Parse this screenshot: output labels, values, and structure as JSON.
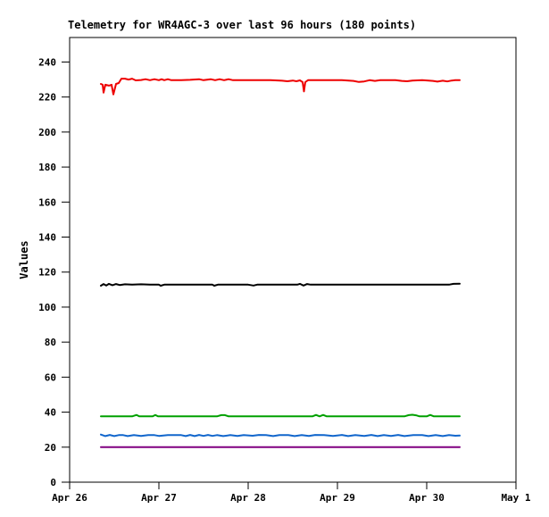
{
  "window": {
    "background": "#ffffff"
  },
  "chart_data": {
    "type": "line",
    "title": "Telemetry for WR4AGC-3 over last 96 hours (180 points)",
    "xlabel": "",
    "ylabel": "Values",
    "grid": false,
    "legend": "none",
    "points_per_series": 180,
    "x_axis": {
      "tick_labels": [
        "Apr 26",
        "Apr 27",
        "Apr 28",
        "Apr 29",
        "Apr 30",
        "May 1"
      ],
      "tick_positions_days": [
        0,
        1,
        2,
        3,
        4,
        5
      ],
      "xlim_days": [
        0,
        5
      ]
    },
    "y_axis": {
      "ticks": [
        0,
        20,
        40,
        60,
        80,
        100,
        120,
        140,
        160,
        180,
        200,
        220,
        240
      ],
      "ylim": [
        0,
        254
      ]
    },
    "colors": {
      "axis": "#000000",
      "text": "#000000",
      "plot_background": "#ffffff"
    },
    "series": [
      {
        "name": "series-red",
        "color": "#ee0000",
        "approx_level": 229.5,
        "points": [
          [
            0.35,
            227.5
          ],
          [
            0.37,
            227.0
          ],
          [
            0.38,
            222.5
          ],
          [
            0.4,
            227.0
          ],
          [
            0.44,
            226.5
          ],
          [
            0.47,
            227.0
          ],
          [
            0.49,
            221.5
          ],
          [
            0.52,
            227.5
          ],
          [
            0.55,
            228.0
          ],
          [
            0.58,
            230.5
          ],
          [
            0.62,
            230.5
          ],
          [
            0.66,
            230.0
          ],
          [
            0.7,
            230.5
          ],
          [
            0.74,
            229.5
          ],
          [
            0.8,
            229.7
          ],
          [
            0.85,
            230.2
          ],
          [
            0.9,
            229.6
          ],
          [
            0.95,
            230.2
          ],
          [
            1.0,
            229.6
          ],
          [
            1.03,
            230.2
          ],
          [
            1.06,
            229.6
          ],
          [
            1.1,
            230.2
          ],
          [
            1.14,
            229.6
          ],
          [
            1.25,
            229.6
          ],
          [
            1.35,
            229.8
          ],
          [
            1.45,
            230.2
          ],
          [
            1.5,
            229.6
          ],
          [
            1.58,
            230.2
          ],
          [
            1.63,
            229.6
          ],
          [
            1.68,
            230.2
          ],
          [
            1.73,
            229.6
          ],
          [
            1.78,
            230.2
          ],
          [
            1.83,
            229.6
          ],
          [
            1.95,
            229.6
          ],
          [
            2.1,
            229.6
          ],
          [
            2.25,
            229.6
          ],
          [
            2.38,
            229.3
          ],
          [
            2.44,
            229.0
          ],
          [
            2.5,
            229.4
          ],
          [
            2.54,
            229.0
          ],
          [
            2.58,
            229.5
          ],
          [
            2.61,
            228.5
          ],
          [
            2.625,
            223.2
          ],
          [
            2.64,
            228.5
          ],
          [
            2.67,
            229.6
          ],
          [
            2.85,
            229.6
          ],
          [
            3.05,
            229.6
          ],
          [
            3.18,
            229.2
          ],
          [
            3.24,
            228.6
          ],
          [
            3.3,
            228.9
          ],
          [
            3.36,
            229.6
          ],
          [
            3.42,
            229.2
          ],
          [
            3.48,
            229.6
          ],
          [
            3.65,
            229.6
          ],
          [
            3.72,
            229.2
          ],
          [
            3.78,
            229.0
          ],
          [
            3.84,
            229.4
          ],
          [
            3.95,
            229.6
          ],
          [
            4.07,
            229.2
          ],
          [
            4.12,
            228.8
          ],
          [
            4.18,
            229.3
          ],
          [
            4.23,
            228.9
          ],
          [
            4.28,
            229.4
          ],
          [
            4.32,
            229.6
          ],
          [
            4.37,
            229.6
          ]
        ]
      },
      {
        "name": "series-black",
        "color": "#000000",
        "approx_level": 112.8,
        "points": [
          [
            0.35,
            112.2
          ],
          [
            0.38,
            113.2
          ],
          [
            0.41,
            112.3
          ],
          [
            0.44,
            113.3
          ],
          [
            0.48,
            112.5
          ],
          [
            0.52,
            113.2
          ],
          [
            0.56,
            112.6
          ],
          [
            0.62,
            113.0
          ],
          [
            0.7,
            112.8
          ],
          [
            0.8,
            113.0
          ],
          [
            0.9,
            112.8
          ],
          [
            1.0,
            112.8
          ],
          [
            1.02,
            112.2
          ],
          [
            1.06,
            112.8
          ],
          [
            1.2,
            112.8
          ],
          [
            1.4,
            112.8
          ],
          [
            1.6,
            112.8
          ],
          [
            1.62,
            112.2
          ],
          [
            1.66,
            112.8
          ],
          [
            1.8,
            112.8
          ],
          [
            2.0,
            112.8
          ],
          [
            2.06,
            112.3
          ],
          [
            2.1,
            112.8
          ],
          [
            2.3,
            112.8
          ],
          [
            2.55,
            112.8
          ],
          [
            2.58,
            113.3
          ],
          [
            2.62,
            112.3
          ],
          [
            2.66,
            113.2
          ],
          [
            2.7,
            112.8
          ],
          [
            3.0,
            112.8
          ],
          [
            3.3,
            112.8
          ],
          [
            3.6,
            112.8
          ],
          [
            3.9,
            112.8
          ],
          [
            4.1,
            112.8
          ],
          [
            4.25,
            112.8
          ],
          [
            4.3,
            113.3
          ],
          [
            4.37,
            113.4
          ]
        ]
      },
      {
        "name": "series-green",
        "color": "#00a000",
        "approx_level": 37.6,
        "points": [
          [
            0.35,
            37.6
          ],
          [
            0.7,
            37.6
          ],
          [
            0.75,
            38.4
          ],
          [
            0.78,
            37.6
          ],
          [
            0.93,
            37.6
          ],
          [
            0.96,
            38.4
          ],
          [
            0.99,
            37.6
          ],
          [
            1.2,
            37.6
          ],
          [
            1.65,
            37.6
          ],
          [
            1.7,
            38.3
          ],
          [
            1.74,
            38.3
          ],
          [
            1.78,
            37.6
          ],
          [
            2.1,
            37.6
          ],
          [
            2.72,
            37.6
          ],
          [
            2.76,
            38.4
          ],
          [
            2.8,
            37.6
          ],
          [
            2.84,
            38.4
          ],
          [
            2.88,
            37.6
          ],
          [
            3.2,
            37.6
          ],
          [
            3.75,
            37.6
          ],
          [
            3.8,
            38.3
          ],
          [
            3.84,
            38.5
          ],
          [
            3.88,
            38.2
          ],
          [
            3.92,
            37.6
          ],
          [
            4.0,
            37.6
          ],
          [
            4.04,
            38.4
          ],
          [
            4.08,
            37.6
          ],
          [
            4.37,
            37.6
          ]
        ]
      },
      {
        "name": "series-blue",
        "color": "#1166cc",
        "approx_level": 26.6,
        "points": [
          [
            0.35,
            27.2
          ],
          [
            0.4,
            26.3
          ],
          [
            0.45,
            27.0
          ],
          [
            0.5,
            26.3
          ],
          [
            0.55,
            26.9
          ],
          [
            0.6,
            26.9
          ],
          [
            0.65,
            26.3
          ],
          [
            0.72,
            26.9
          ],
          [
            0.8,
            26.4
          ],
          [
            0.88,
            26.9
          ],
          [
            0.95,
            26.9
          ],
          [
            1.0,
            26.4
          ],
          [
            1.1,
            26.9
          ],
          [
            1.25,
            26.9
          ],
          [
            1.3,
            26.3
          ],
          [
            1.35,
            27.0
          ],
          [
            1.4,
            26.3
          ],
          [
            1.45,
            27.0
          ],
          [
            1.5,
            26.4
          ],
          [
            1.55,
            27.0
          ],
          [
            1.6,
            26.4
          ],
          [
            1.65,
            26.9
          ],
          [
            1.72,
            26.3
          ],
          [
            1.8,
            26.9
          ],
          [
            1.88,
            26.4
          ],
          [
            1.95,
            26.9
          ],
          [
            2.05,
            26.5
          ],
          [
            2.12,
            27.0
          ],
          [
            2.2,
            26.9
          ],
          [
            2.28,
            26.3
          ],
          [
            2.35,
            26.9
          ],
          [
            2.45,
            26.9
          ],
          [
            2.52,
            26.3
          ],
          [
            2.6,
            26.9
          ],
          [
            2.68,
            26.4
          ],
          [
            2.75,
            27.0
          ],
          [
            2.85,
            26.9
          ],
          [
            2.95,
            26.4
          ],
          [
            3.05,
            27.0
          ],
          [
            3.12,
            26.3
          ],
          [
            3.2,
            26.9
          ],
          [
            3.3,
            26.4
          ],
          [
            3.38,
            27.0
          ],
          [
            3.45,
            26.3
          ],
          [
            3.52,
            26.9
          ],
          [
            3.6,
            26.4
          ],
          [
            3.68,
            27.0
          ],
          [
            3.75,
            26.3
          ],
          [
            3.85,
            26.9
          ],
          [
            3.95,
            26.9
          ],
          [
            4.02,
            26.3
          ],
          [
            4.1,
            26.9
          ],
          [
            4.18,
            26.3
          ],
          [
            4.25,
            26.9
          ],
          [
            4.32,
            26.5
          ],
          [
            4.37,
            26.6
          ]
        ]
      },
      {
        "name": "series-purple",
        "color": "#800080",
        "approx_level": 20.0,
        "points": [
          [
            0.35,
            20.0
          ],
          [
            1.35,
            20.0
          ],
          [
            2.35,
            20.0
          ],
          [
            3.35,
            20.0
          ],
          [
            4.37,
            20.0
          ]
        ]
      }
    ]
  }
}
